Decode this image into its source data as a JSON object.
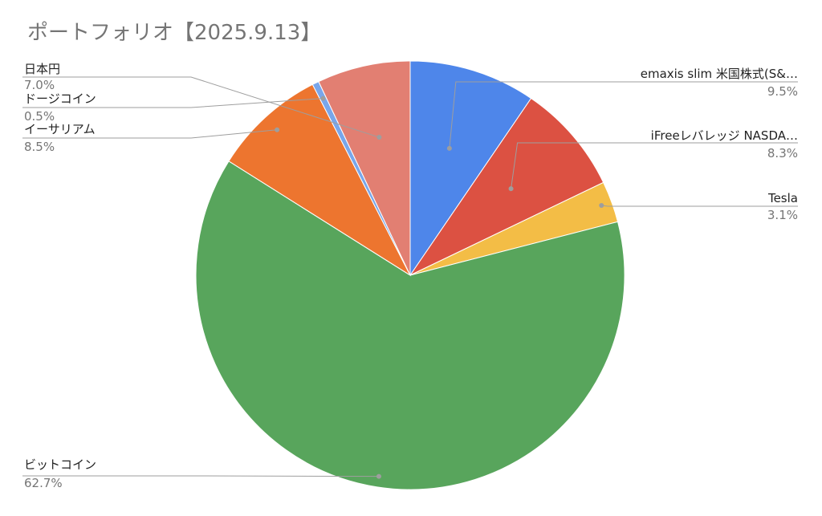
{
  "chart_data": {
    "type": "pie",
    "title": "ポートフォリオ【2025.9.13】",
    "categories": [
      "emaxis slim 米国株式(S&…",
      "iFreeレバレッジ NASDA…",
      "Tesla",
      "ビットコイン",
      "イーサリアム",
      "ドージコイン",
      "日本円"
    ],
    "values": [
      9.5,
      8.3,
      3.1,
      62.7,
      8.5,
      0.5,
      7.0
    ],
    "value_labels": [
      "9.5%",
      "8.3%",
      "3.1%",
      "62.7%",
      "8.5%",
      "0.5%",
      "7.0%"
    ],
    "colors": [
      "#4e86ea",
      "#dc5142",
      "#f3bd46",
      "#58a55c",
      "#ed752f",
      "#79a6ea",
      "#e27f72"
    ],
    "legend": "none",
    "label_placement": "outside-with-leader-lines"
  }
}
